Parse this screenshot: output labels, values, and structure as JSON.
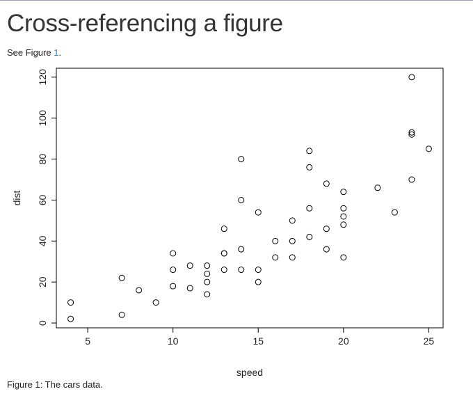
{
  "page": {
    "title": "Cross-referencing a figure",
    "see_prefix": "See Figure ",
    "see_ref": "1",
    "see_suffix": ".",
    "caption": "Figure 1: The cars data.",
    "link_color": "#2a7ab0"
  },
  "chart_data": {
    "type": "scatter",
    "title": "",
    "xlabel": "speed",
    "ylabel": "dist",
    "xlim": [
      3.16,
      25.84
    ],
    "ylim": [
      -2.36,
      124.36
    ],
    "x_ticks": [
      5,
      10,
      15,
      20,
      25
    ],
    "y_ticks": [
      0,
      20,
      40,
      60,
      80,
      100,
      120
    ],
    "grid": false,
    "marker": "open-circle",
    "series": [
      {
        "x": [
          4,
          4,
          7,
          7,
          8,
          9,
          10,
          10,
          10,
          11,
          11,
          12,
          12,
          12,
          12,
          13,
          13,
          13,
          13,
          14,
          14,
          14,
          14,
          15,
          15,
          15,
          16,
          16,
          17,
          17,
          17,
          18,
          18,
          18,
          18,
          19,
          19,
          19,
          20,
          20,
          20,
          20,
          20,
          22,
          23,
          24,
          24,
          24,
          24,
          25
        ],
        "y": [
          2,
          10,
          4,
          22,
          16,
          10,
          18,
          26,
          34,
          17,
          28,
          14,
          20,
          24,
          28,
          26,
          34,
          34,
          46,
          26,
          36,
          60,
          80,
          20,
          26,
          54,
          32,
          40,
          32,
          40,
          50,
          42,
          56,
          76,
          84,
          36,
          46,
          68,
          32,
          48,
          52,
          56,
          64,
          66,
          54,
          70,
          92,
          93,
          120,
          85
        ]
      }
    ]
  }
}
